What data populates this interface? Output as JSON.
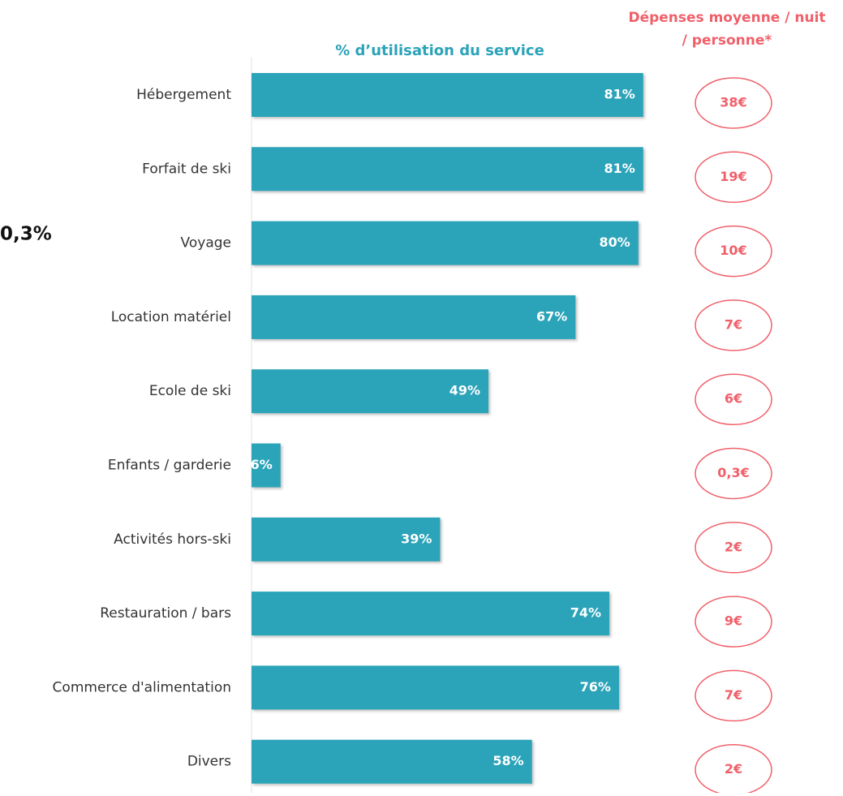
{
  "chart_data": {
    "type": "bar",
    "orientation": "horizontal",
    "title": "% d’utilisation du service",
    "categories": [
      "Hébergement",
      "Forfait de ski",
      "Voyage",
      "Location matériel",
      "Ecole de ski",
      "Enfants / garderie",
      "Activités hors-ski",
      "Restauration / bars",
      "Commerce d'alimentation",
      "Divers"
    ],
    "values": [
      81,
      81,
      80,
      67,
      49,
      6,
      39,
      74,
      76,
      58
    ],
    "value_labels": [
      "81%",
      "81%",
      "80%",
      "67%",
      "49%",
      "6%",
      "39%",
      "74%",
      "76%",
      "58%"
    ],
    "color": "#2ba3b9",
    "xlim": [
      0,
      100
    ],
    "annotation": "0,3%",
    "side_column": {
      "title": [
        "Dépenses moyenne / nuit",
        "/ personne*"
      ],
      "labels": [
        "38€",
        "19€",
        "10€",
        "7€",
        "6€",
        "0,3€",
        "2€",
        "9€",
        "7€",
        "2€"
      ],
      "color": "#f0606a"
    }
  }
}
